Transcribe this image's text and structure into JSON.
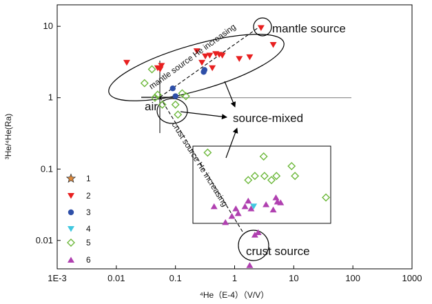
{
  "chart_data": {
    "type": "scatter",
    "x_scale": "log",
    "y_scale": "log",
    "xlim": [
      0.001,
      1000
    ],
    "ylim": [
      0.004,
      20
    ],
    "x_ticks": [
      "1E-3",
      "0.01",
      "0.1",
      "1",
      "10",
      "100",
      "1000"
    ],
    "y_ticks": [
      "0.01",
      "0.1",
      "1",
      "10"
    ],
    "xlabel": "⁴He（E-4）（V/V）",
    "ylabel": "³He/⁴He(Ra)",
    "reference_line_y": 1,
    "legend_position": "bottom-left",
    "series": [
      {
        "name": "1",
        "marker": "star",
        "color": "#e08a3c",
        "points": []
      },
      {
        "name": "2",
        "marker": "triangle-down",
        "color": "#e82020",
        "points": [
          [
            0.015,
            3.1
          ],
          [
            0.05,
            2.6
          ],
          [
            0.055,
            2.5
          ],
          [
            0.058,
            2.8
          ],
          [
            0.23,
            4.5
          ],
          [
            0.28,
            3.1
          ],
          [
            0.32,
            3.8
          ],
          [
            0.38,
            3.9
          ],
          [
            0.42,
            2.6
          ],
          [
            0.48,
            4.1
          ],
          [
            0.55,
            4.0
          ],
          [
            0.62,
            3.9
          ],
          [
            1.2,
            3.5
          ],
          [
            1.8,
            3.7
          ],
          [
            2.8,
            9.5
          ],
          [
            4.5,
            5.5
          ]
        ]
      },
      {
        "name": "3",
        "marker": "circle",
        "color": "#2e4fa8",
        "points": [
          [
            0.09,
            1.35
          ],
          [
            0.1,
            1.05
          ],
          [
            0.3,
            2.3
          ],
          [
            0.31,
            2.45
          ]
        ]
      },
      {
        "name": "4",
        "marker": "triangle-down",
        "color": "#40c8e0",
        "points": [
          [
            2.1,
            0.03
          ]
        ]
      },
      {
        "name": "5",
        "marker": "diamond-open",
        "color": "#6cb83a",
        "points": [
          [
            0.03,
            1.6
          ],
          [
            0.04,
            2.5
          ],
          [
            0.045,
            1.0
          ],
          [
            0.05,
            1.1
          ],
          [
            0.06,
            0.8
          ],
          [
            0.1,
            0.8
          ],
          [
            0.11,
            0.58
          ],
          [
            0.13,
            1.15
          ],
          [
            0.15,
            1.05
          ],
          [
            0.35,
            0.17
          ],
          [
            1.7,
            0.07
          ],
          [
            2.2,
            0.08
          ],
          [
            3.1,
            0.15
          ],
          [
            3.2,
            0.08
          ],
          [
            4.2,
            0.07
          ],
          [
            5.1,
            0.08
          ],
          [
            9.2,
            0.11
          ],
          [
            10.5,
            0.08
          ],
          [
            35,
            0.04
          ]
        ]
      },
      {
        "name": "6",
        "marker": "triangle-up",
        "color": "#b040b0",
        "points": [
          [
            0.45,
            0.03
          ],
          [
            0.7,
            0.018
          ],
          [
            0.9,
            0.022
          ],
          [
            1.05,
            0.028
          ],
          [
            1.15,
            0.024
          ],
          [
            1.5,
            0.03
          ],
          [
            1.7,
            0.036
          ],
          [
            1.8,
            0.0045
          ],
          [
            1.9,
            0.028
          ],
          [
            2.2,
            0.012
          ],
          [
            2.5,
            0.013
          ],
          [
            3.4,
            0.032
          ],
          [
            4.5,
            0.027
          ],
          [
            5.0,
            0.04
          ],
          [
            5.3,
            0.035
          ],
          [
            6.0,
            0.034
          ]
        ]
      }
    ],
    "annotations": {
      "mantle_source": "mantle source",
      "crust_source": "crust source",
      "source_mixed": "source-mixed",
      "air": "air",
      "mantle_trend": "mantle source He increasing",
      "crust_trend": "crust source He increasing"
    }
  }
}
